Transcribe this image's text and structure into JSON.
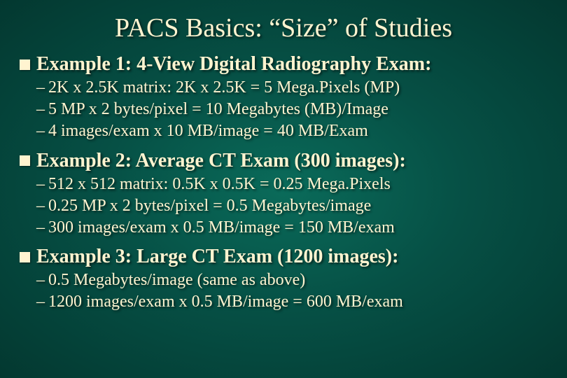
{
  "title": "PACS Basics: “Size” of Studies",
  "title_fontsize": 38,
  "heading_fontsize": 28,
  "subitem_fontsize": 24,
  "text_color": "#fff4d0",
  "background_gradient": {
    "inner": "#0a6b5a",
    "mid": "#065045",
    "outer": "#033830"
  },
  "shadow": "2px 2px 3px rgba(0,0,0,0.6)",
  "sections": [
    {
      "heading": "Example 1:  4-View Digital Radiography Exam:",
      "items": [
        "2K x 2.5K matrix:  2K x 2.5K = 5 Mega.Pixels (MP)",
        "5 MP x 2 bytes/pixel = 10 Megabytes (MB)/Image",
        "4 images/exam x 10 MB/image = 40 MB/Exam"
      ]
    },
    {
      "heading": "Example 2:  Average CT Exam (300 images):",
      "items": [
        "512 x 512 matrix:  0.5K x 0.5K = 0.25 Mega.Pixels",
        "0.25 MP x 2 bytes/pixel = 0.5 Megabytes/image",
        "300 images/exam x 0.5 MB/image = 150 MB/exam"
      ]
    },
    {
      "heading": "Example 3:  Large CT Exam (1200 images):",
      "items": [
        "0.5 Megabytes/image (same as above)",
        "1200 images/exam x 0.5 MB/image = 600 MB/exam"
      ]
    }
  ]
}
